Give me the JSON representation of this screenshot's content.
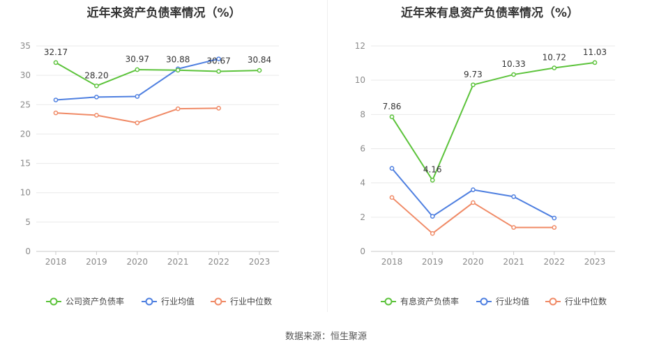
{
  "source": "数据来源：恒生聚源",
  "chart_data": [
    {
      "type": "line",
      "title": "近年来资产负债率情况（%）",
      "categories": [
        "2018",
        "2019",
        "2020",
        "2021",
        "2022",
        "2023"
      ],
      "ylim": [
        0,
        35
      ],
      "yticks": [
        0,
        5,
        10,
        15,
        20,
        25,
        30,
        35
      ],
      "grid": true,
      "legend_position": "bottom",
      "series": [
        {
          "name": "公司资产负债率",
          "color": "#5cc33b",
          "values": [
            32.17,
            28.2,
            30.97,
            30.88,
            30.67,
            30.84
          ],
          "labels": [
            "32.17",
            "28.20",
            "30.97",
            "30.88",
            "30.67",
            "30.84"
          ]
        },
        {
          "name": "行业均值",
          "color": "#4e7fe0",
          "values": [
            25.8,
            26.3,
            26.4,
            31.1,
            32.8,
            null
          ]
        },
        {
          "name": "行业中位数",
          "color": "#f08a66",
          "values": [
            23.6,
            23.2,
            21.9,
            24.3,
            24.4,
            null
          ]
        }
      ]
    },
    {
      "type": "line",
      "title": "近年来有息资产负债率情况（%）",
      "categories": [
        "2018",
        "2019",
        "2020",
        "2021",
        "2022",
        "2023"
      ],
      "ylim": [
        0,
        12
      ],
      "yticks": [
        0,
        2,
        4,
        6,
        8,
        10,
        12
      ],
      "grid": true,
      "legend_position": "bottom",
      "series": [
        {
          "name": "有息资产负债率",
          "color": "#5cc33b",
          "values": [
            7.86,
            4.16,
            9.73,
            10.33,
            10.72,
            11.03
          ],
          "labels": [
            "7.86",
            "4.16",
            "9.73",
            "10.33",
            "10.72",
            "11.03"
          ]
        },
        {
          "name": "行业均值",
          "color": "#4e7fe0",
          "values": [
            4.85,
            2.05,
            3.6,
            3.2,
            1.95,
            null
          ]
        },
        {
          "name": "行业中位数",
          "color": "#f08a66",
          "values": [
            3.15,
            1.05,
            2.85,
            1.4,
            1.4,
            null
          ]
        }
      ]
    }
  ]
}
